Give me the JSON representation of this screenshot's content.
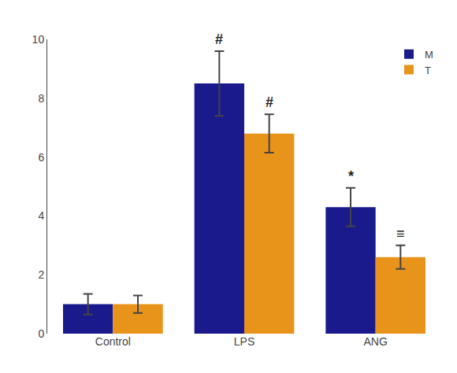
{
  "chart_data": {
    "type": "bar",
    "categories": [
      "Control",
      "LPS",
      "ANG"
    ],
    "series": [
      {
        "name": "M",
        "color": "#1a1a8c",
        "values": [
          1.0,
          8.5,
          4.3
        ],
        "errors": [
          0.35,
          1.1,
          0.65
        ],
        "annotations": [
          null,
          "#",
          "*"
        ]
      },
      {
        "name": "T",
        "color": "#e8941a",
        "values": [
          1.0,
          6.8,
          2.6
        ],
        "errors": [
          0.3,
          0.65,
          0.4
        ],
        "annotations": [
          null,
          "#",
          "≡"
        ]
      }
    ],
    "ylim": [
      0,
      10
    ],
    "yticks": [
      0,
      2,
      4,
      6,
      8,
      10
    ],
    "grid": false,
    "legend": "upper right"
  }
}
